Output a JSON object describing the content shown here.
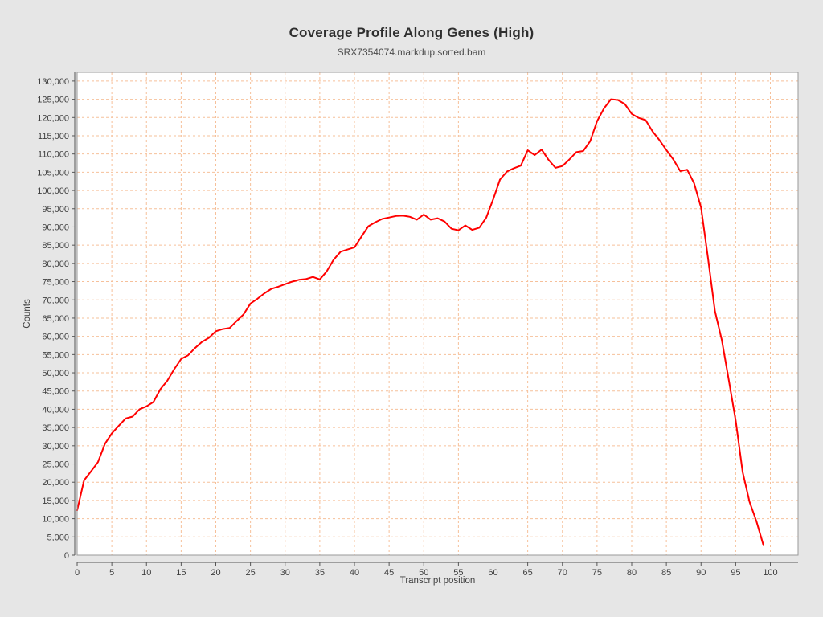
{
  "chart_data": {
    "type": "line",
    "title": "Coverage Profile Along Genes (High)",
    "subtitle": "SRX7354074.markdup.sorted.bam",
    "xlabel": "Transcript position",
    "ylabel": "Counts",
    "grid": true,
    "legend": false,
    "xlim": [
      0,
      104
    ],
    "ylim": [
      0,
      132400
    ],
    "x_ticks": [
      0,
      5,
      10,
      15,
      20,
      25,
      30,
      35,
      40,
      45,
      50,
      55,
      60,
      65,
      70,
      75,
      80,
      85,
      90,
      95,
      100
    ],
    "y_ticks": [
      0,
      5000,
      10000,
      15000,
      20000,
      25000,
      30000,
      35000,
      40000,
      45000,
      50000,
      55000,
      60000,
      65000,
      70000,
      75000,
      80000,
      85000,
      90000,
      95000,
      100000,
      105000,
      110000,
      115000,
      120000,
      125000,
      130000
    ],
    "colors": {
      "background": "#e6e6e6",
      "plot_background": "#ffffff",
      "grid": "#f6c09a",
      "line": "#ff0000",
      "plot_border": "#999999",
      "axis": "#555555",
      "tick_text": "#3f3f3f",
      "axis_label_text": "#3f3f3f"
    },
    "x": [
      0,
      1,
      2,
      3,
      4,
      5,
      6,
      7,
      8,
      9,
      10,
      11,
      12,
      13,
      14,
      15,
      16,
      17,
      18,
      19,
      20,
      21,
      22,
      23,
      24,
      25,
      26,
      27,
      28,
      29,
      30,
      31,
      32,
      33,
      34,
      35,
      36,
      37,
      38,
      39,
      40,
      41,
      42,
      43,
      44,
      45,
      46,
      47,
      48,
      49,
      50,
      51,
      52,
      53,
      54,
      55,
      56,
      57,
      58,
      59,
      60,
      61,
      62,
      63,
      64,
      65,
      66,
      67,
      68,
      69,
      70,
      71,
      72,
      73,
      74,
      75,
      76,
      77,
      78,
      79,
      80,
      81,
      82,
      83,
      84,
      85,
      86,
      87,
      88,
      89,
      90,
      91,
      92,
      93,
      94,
      95,
      96,
      97,
      98,
      99
    ],
    "series": [
      {
        "name": "SRX7354074.markdup.sorted.bam",
        "values": [
          12300,
          20500,
          23000,
          25500,
          30500,
          33400,
          35500,
          37500,
          38000,
          40000,
          40800,
          42000,
          45500,
          47800,
          51000,
          53800,
          54800,
          56800,
          58500,
          59600,
          61400,
          62000,
          62300,
          64200,
          66000,
          69000,
          70300,
          71800,
          73000,
          73600,
          74300,
          75000,
          75500,
          75700,
          76300,
          75600,
          77800,
          81000,
          83200,
          83800,
          84400,
          87300,
          90200,
          91300,
          92200,
          92600,
          93000,
          93100,
          92800,
          92000,
          93400,
          92000,
          92400,
          91500,
          89500,
          89100,
          90400,
          89200,
          89800,
          92500,
          97500,
          103000,
          105200,
          106100,
          106800,
          111000,
          109700,
          111200,
          108400,
          106200,
          106700,
          108500,
          110500,
          110800,
          113500,
          119000,
          122500,
          125000,
          124800,
          123700,
          121000,
          119900,
          119300,
          116200,
          113800,
          111100,
          108500,
          105300,
          105700,
          102000,
          95300,
          81500,
          67000,
          59000,
          48000,
          36900,
          22800,
          14600,
          9200,
          2700
        ]
      }
    ]
  }
}
